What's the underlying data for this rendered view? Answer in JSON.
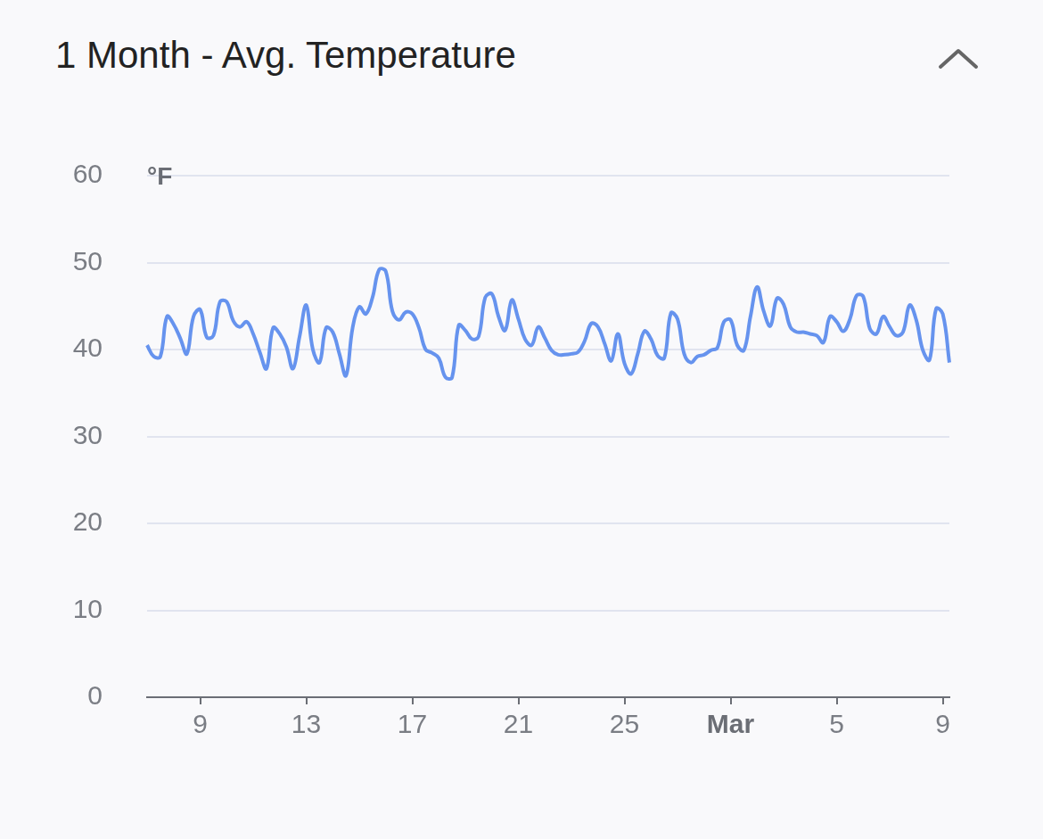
{
  "chart_data": {
    "type": "line",
    "title": "1 Month - Avg. Temperature",
    "y_label": "°F",
    "categories": [
      null,
      null,
      null,
      null,
      null,
      null,
      null,
      null,
      "9",
      null,
      null,
      null,
      null,
      null,
      null,
      null,
      null,
      null,
      null,
      null,
      null,
      null,
      null,
      null,
      "13",
      null,
      null,
      null,
      null,
      null,
      null,
      null,
      null,
      null,
      null,
      null,
      null,
      null,
      null,
      null,
      "17",
      null,
      null,
      null,
      null,
      null,
      null,
      null,
      null,
      null,
      null,
      null,
      null,
      null,
      null,
      null,
      "21",
      null,
      null,
      null,
      null,
      null,
      null,
      null,
      null,
      null,
      null,
      null,
      null,
      null,
      null,
      null,
      "25",
      null,
      null,
      null,
      null,
      null,
      null,
      null,
      null,
      null,
      null,
      null,
      null,
      null,
      null,
      null,
      "Mar",
      null,
      null,
      null,
      null,
      null,
      null,
      null,
      null,
      null,
      null,
      null,
      null,
      null,
      null,
      null,
      "5",
      null,
      null,
      null,
      null,
      null,
      null,
      null,
      null,
      null,
      null,
      null,
      null,
      null,
      null,
      null,
      "9",
      null
    ],
    "values": [
      40.5,
      39.2,
      39.2,
      43.8,
      42.9,
      41.3,
      39.5,
      43.8,
      44.6,
      41.4,
      41.6,
      45.5,
      45.5,
      43.3,
      42.6,
      43.2,
      41.8,
      39.7,
      37.8,
      42.5,
      41.8,
      40.3,
      37.8,
      41.5,
      45.1,
      40,
      38.5,
      42.5,
      42,
      39.5,
      37,
      42.5,
      44.9,
      44.1,
      46,
      49.2,
      49,
      44.4,
      43.4,
      44.3,
      44.1,
      42.5,
      40,
      39.6,
      39,
      36.8,
      36.8,
      42.8,
      42.2,
      41.2,
      41.5,
      46,
      46.4,
      43.8,
      42.2,
      45.7,
      43.5,
      41.2,
      40.5,
      42.6,
      41.3,
      39.9,
      39.4,
      39.4,
      39.5,
      39.7,
      41,
      43,
      42.6,
      40.7,
      38.7,
      41.8,
      38.4,
      37.2,
      39.5,
      42.1,
      41.2,
      39.3,
      39,
      44.2,
      43.5,
      39.5,
      38.5,
      39.2,
      39.4,
      39.9,
      40.2,
      43.2,
      43.4,
      40.5,
      39.9,
      43.8,
      47.2,
      44.4,
      42.7,
      45.9,
      45.2,
      42.6,
      42,
      42,
      41.8,
      41.6,
      40.8,
      43.8,
      43.2,
      42.1,
      43.5,
      46.2,
      46.1,
      42.4,
      41.8,
      43.8,
      42.6,
      41.6,
      42,
      45.1,
      43.4,
      39.9,
      38.8,
      44.7,
      44.1,
      38.5
    ],
    "color": "#6693ee",
    "ylim": [
      0,
      60
    ],
    "yticks": [
      0,
      10,
      20,
      30,
      40,
      50,
      60
    ],
    "grid": true
  }
}
